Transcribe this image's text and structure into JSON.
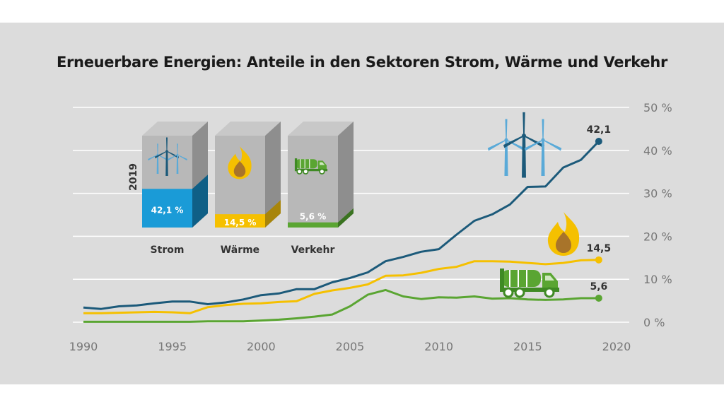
{
  "title": "Erneuerbare Energien: Anteile in den Sektoren Strom, Wärme und Verkehr",
  "inset": {
    "year": "2019",
    "cubes": [
      {
        "key": "strom",
        "label": "Strom",
        "value": 42.1,
        "value_label": "42,1 %",
        "color": "#1a9bd7",
        "side": "#0f5f86",
        "icon": "wind-turbine-icon"
      },
      {
        "key": "waerme",
        "label": "Wärme",
        "value": 14.5,
        "value_label": "14,5 %",
        "color": "#f5c000",
        "side": "#a8850a",
        "icon": "flame-icon"
      },
      {
        "key": "verkehr",
        "label": "Verkehr",
        "value": 5.6,
        "value_label": "5,6 %",
        "color": "#5aa532",
        "side": "#3a7320",
        "icon": "tanker-truck-icon"
      }
    ]
  },
  "chart_data": {
    "type": "line",
    "title": "Erneuerbare Energien: Anteile in den Sektoren Strom, Wärme und Verkehr",
    "xlabel": "",
    "ylabel": "",
    "xlim": [
      1990,
      2020
    ],
    "ylim": [
      0,
      50
    ],
    "x_ticks": [
      "1990",
      "1995",
      "2000",
      "2005",
      "2010",
      "2015",
      "2020"
    ],
    "x_tick_values": [
      1990,
      1995,
      2000,
      2005,
      2010,
      2015,
      2020
    ],
    "y_ticks": [
      "0 %",
      "10 %",
      "20 %",
      "30 %",
      "40 %",
      "50 %"
    ],
    "y_tick_values": [
      0,
      10,
      20,
      30,
      40,
      50
    ],
    "grid": "horizontal",
    "x": [
      1990,
      1991,
      1992,
      1993,
      1994,
      1995,
      1996,
      1997,
      1998,
      1999,
      2000,
      2001,
      2002,
      2003,
      2004,
      2005,
      2006,
      2007,
      2008,
      2009,
      2010,
      2011,
      2012,
      2013,
      2014,
      2015,
      2016,
      2017,
      2018,
      2019
    ],
    "series": [
      {
        "name": "Strom",
        "color": "#1c5a7a",
        "end_label": "42,1",
        "icon": "wind-turbine-icon",
        "values": [
          3.4,
          3.1,
          3.7,
          3.9,
          4.4,
          4.8,
          4.8,
          4.2,
          4.6,
          5.3,
          6.3,
          6.7,
          7.7,
          7.7,
          9.3,
          10.3,
          11.6,
          14.2,
          15.2,
          16.4,
          17.0,
          20.4,
          23.6,
          25.1,
          27.4,
          31.5,
          31.6,
          36.0,
          37.8,
          42.1
        ]
      },
      {
        "name": "Wärme",
        "color": "#f5c000",
        "end_label": "14,5",
        "icon": "flame-icon",
        "values": [
          2.1,
          2.1,
          2.2,
          2.3,
          2.4,
          2.3,
          2.1,
          3.5,
          4.0,
          4.3,
          4.4,
          4.7,
          4.9,
          6.6,
          7.4,
          8.0,
          8.8,
          10.8,
          10.9,
          11.5,
          12.4,
          12.9,
          14.2,
          14.2,
          14.1,
          13.8,
          13.5,
          13.8,
          14.4,
          14.5
        ]
      },
      {
        "name": "Verkehr",
        "color": "#5aa532",
        "end_label": "5,6",
        "icon": "tanker-truck-icon",
        "values": [
          0.1,
          0.1,
          0.1,
          0.1,
          0.1,
          0.1,
          0.1,
          0.2,
          0.2,
          0.2,
          0.4,
          0.6,
          0.9,
          1.3,
          1.8,
          3.7,
          6.4,
          7.5,
          6.0,
          5.4,
          5.8,
          5.7,
          6.0,
          5.5,
          5.6,
          5.3,
          5.2,
          5.3,
          5.6,
          5.6
        ]
      }
    ]
  }
}
